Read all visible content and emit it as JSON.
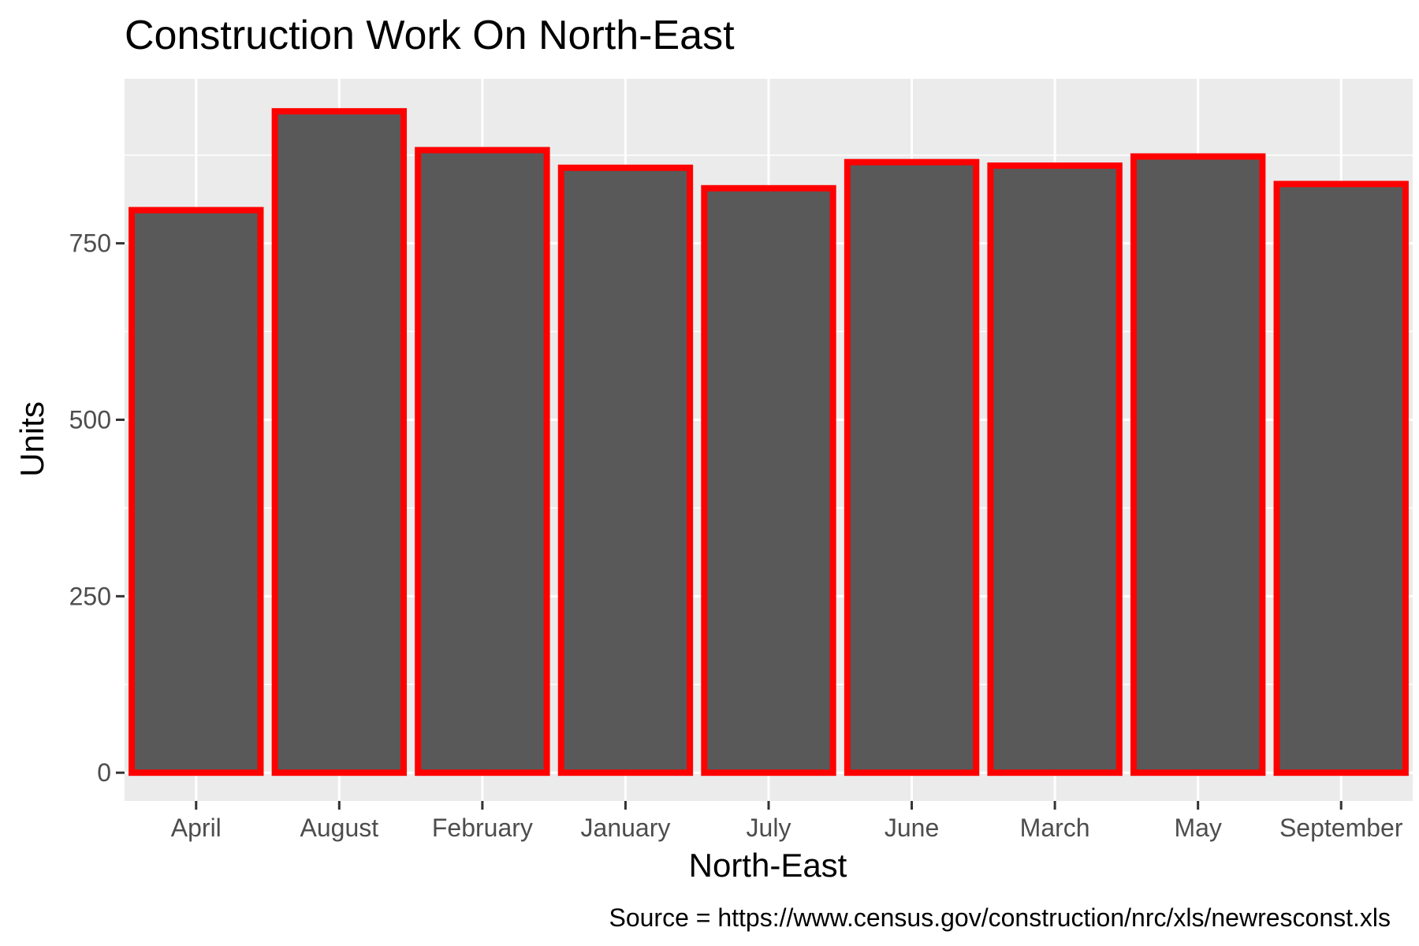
{
  "chart_data": {
    "type": "bar",
    "title": "Construction Work On North-East",
    "xlabel": "North-East",
    "ylabel": "Units",
    "caption": "Source = https://www.census.gov/construction/nrc/xls/newresconst.xls",
    "categories": [
      "April",
      "August",
      "February",
      "January",
      "July",
      "June",
      "March",
      "May",
      "September"
    ],
    "values": [
      797,
      937,
      882,
      857,
      828,
      865,
      860,
      873,
      834
    ],
    "ylim": [
      -40,
      983
    ],
    "y_ticks": [
      0,
      250,
      500,
      750
    ],
    "y_tick_labels": [
      "0",
      "250",
      "500",
      "750"
    ],
    "grid": true,
    "colors": {
      "panel_background": "#ebebeb",
      "grid_line": "#ffffff",
      "bar_fill": "#595959",
      "bar_outline": "#ff0000",
      "tick_text": "#4d4d4d",
      "tick_mark": "#333333"
    }
  }
}
